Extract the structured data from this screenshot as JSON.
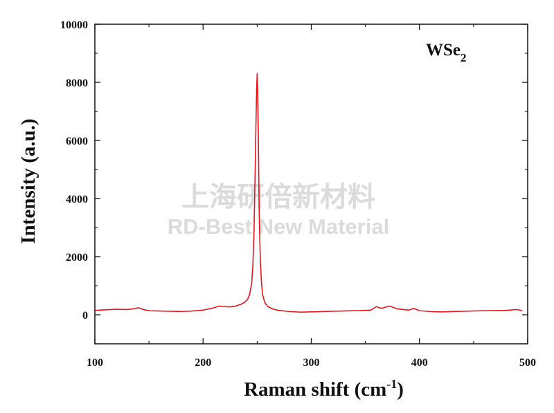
{
  "chart_data": {
    "type": "line",
    "title": "",
    "annotation": {
      "base": "WSe",
      "subscript": "2"
    },
    "xlabel": {
      "prefix": "Raman shift (cm",
      "superscript": "-1",
      "suffix": ")"
    },
    "ylabel": "Intensity (a.u.)",
    "xlim": [
      100,
      500
    ],
    "ylim": [
      -1000,
      10000
    ],
    "x_ticks": [
      "100",
      "200",
      "300",
      "400",
      "500"
    ],
    "y_ticks": [
      "0",
      "2000",
      "4000",
      "6000",
      "8000",
      "10000"
    ],
    "grid": false,
    "legend": "none",
    "series": [
      {
        "color": "#e8141c",
        "x": [
          100,
          110,
          120,
          130,
          135,
          140,
          145,
          150,
          160,
          170,
          180,
          190,
          200,
          210,
          215,
          220,
          225,
          230,
          235,
          238,
          241,
          243,
          245,
          246,
          247,
          248,
          249,
          249.5,
          250,
          250.5,
          251,
          251.5,
          252,
          253,
          254,
          255,
          257,
          260,
          265,
          270,
          280,
          290,
          300,
          320,
          340,
          355,
          360,
          365,
          372,
          380,
          390,
          395,
          400,
          410,
          420,
          440,
          460,
          480,
          490,
          495
        ],
        "y": [
          150,
          170,
          190,
          180,
          200,
          240,
          180,
          140,
          130,
          120,
          110,
          130,
          160,
          240,
          300,
          280,
          270,
          300,
          360,
          420,
          520,
          700,
          1100,
          1700,
          2700,
          4700,
          6800,
          7800,
          8300,
          7600,
          6400,
          4700,
          3200,
          1800,
          1100,
          700,
          420,
          280,
          190,
          150,
          110,
          90,
          100,
          120,
          140,
          160,
          280,
          220,
          300,
          200,
          160,
          220,
          140,
          110,
          100,
          120,
          140,
          150,
          180,
          140
        ]
      }
    ]
  },
  "watermark": {
    "cn": "上海研倍新材料",
    "en": "RD-Best New Material"
  },
  "style": {
    "axis_color": "#111111",
    "background": "#ffffff"
  }
}
